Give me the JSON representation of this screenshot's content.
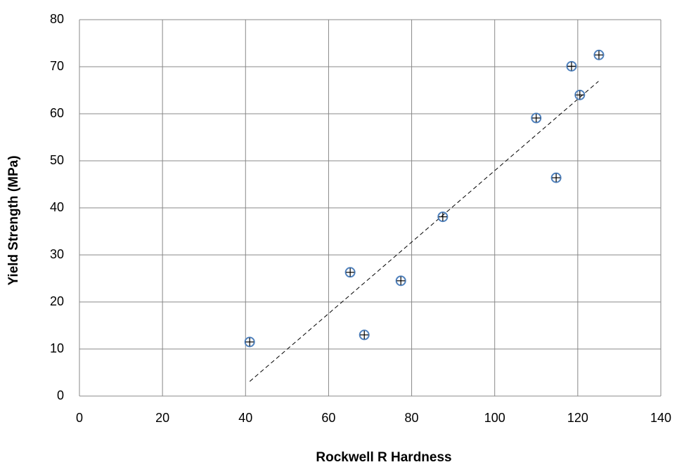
{
  "chart_data": {
    "type": "scatter",
    "x_label": "Rockwell R Hardness",
    "y_label": "Yield Strength (MPa)",
    "series": [
      {
        "color": "#4f81bd",
        "x": [
          41,
          65.2,
          68.6,
          77.4,
          87.5,
          110,
          114.8,
          118.5,
          120.5,
          125.1
        ],
        "values": [
          11.5,
          26.3,
          13,
          24.5,
          38.1,
          59.1,
          46.4,
          70.1,
          64,
          72.5
        ]
      }
    ],
    "trendline": {
      "x": [
        41,
        125
      ],
      "values": [
        3.1,
        66.9
      ]
    },
    "xlim": [
      0,
      140
    ],
    "xticks": [
      0,
      20,
      40,
      60,
      80,
      100,
      120,
      140
    ],
    "ylim": [
      0,
      80
    ],
    "yticks": [
      0,
      10,
      20,
      30,
      40,
      50,
      60,
      70,
      80
    ],
    "grid": true
  }
}
